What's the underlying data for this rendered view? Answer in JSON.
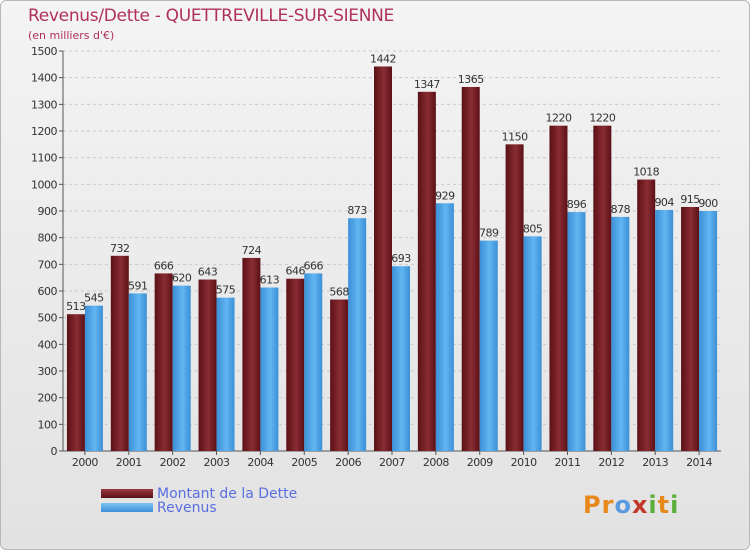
{
  "header": {
    "title": "Revenus/Dette - QUETTREVILLE-SUR-SIENNE",
    "subtitle": "(en milliers d'€)"
  },
  "legend": [
    {
      "label": "Montant de la Dette",
      "color": "#7a1f26"
    },
    {
      "label": "Revenus",
      "color": "#4aa3e8"
    }
  ],
  "logo": {
    "text": "Proxiti",
    "letters": [
      "P",
      "r",
      "o",
      "x",
      "i",
      "t",
      "i"
    ],
    "colors": [
      "#e8891c",
      "#e8891c",
      "#5a9be0",
      "#c0392b",
      "#5ab03a",
      "#e8891c",
      "#5ab03a"
    ]
  },
  "chart_data": {
    "type": "bar",
    "categories": [
      "2000",
      "2001",
      "2002",
      "2003",
      "2004",
      "2005",
      "2006",
      "2007",
      "2008",
      "2009",
      "2010",
      "2011",
      "2012",
      "2013",
      "2014"
    ],
    "series": [
      {
        "name": "Montant de la Dette",
        "values": [
          513,
          732,
          666,
          643,
          724,
          646,
          568,
          1442,
          1347,
          1365,
          1150,
          1220,
          1220,
          1018,
          915
        ]
      },
      {
        "name": "Revenus",
        "values": [
          545,
          591,
          620,
          575,
          613,
          666,
          873,
          693,
          929,
          789,
          805,
          896,
          878,
          904,
          900
        ]
      }
    ],
    "ylim": [
      0,
      1500
    ],
    "yticks": [
      0,
      100,
      200,
      300,
      400,
      500,
      600,
      700,
      800,
      900,
      1000,
      1100,
      1200,
      1300,
      1400,
      1500
    ],
    "grid": true,
    "legend_position": "bottom-left"
  }
}
